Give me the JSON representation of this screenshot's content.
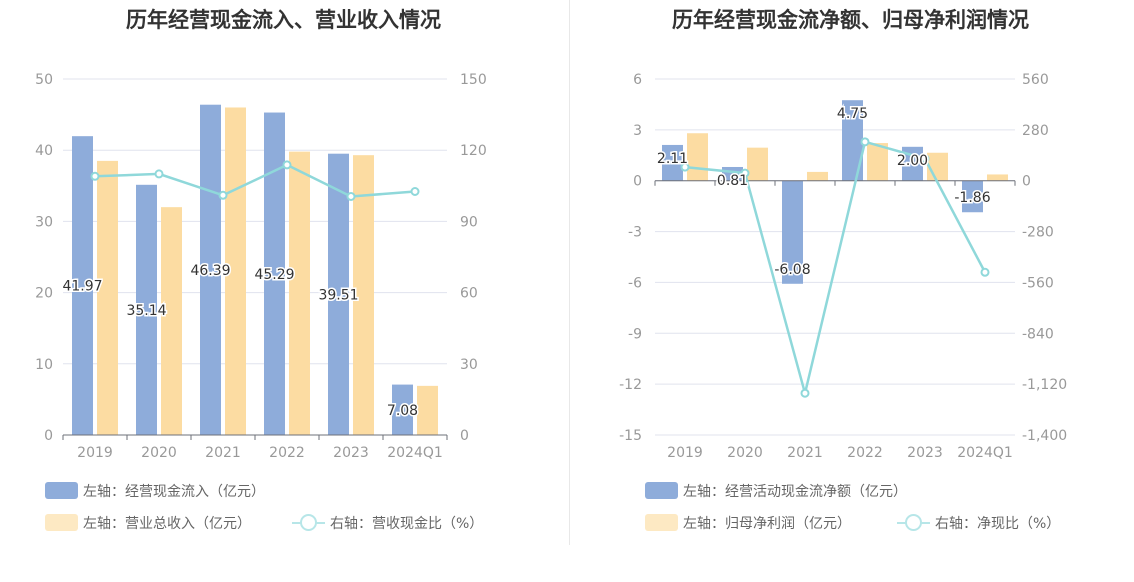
{
  "left": {
    "title": "历年经营现金流入、营业收入情况",
    "legend": {
      "bar1": "左轴：经营现金流入（亿元）",
      "bar2": "左轴：营业总收入（亿元）",
      "line": "右轴：营收现金比（%）"
    }
  },
  "right": {
    "title": "历年经营现金流净额、归母净利润情况",
    "legend": {
      "bar1": "左轴：经营活动现金流净额（亿元）",
      "bar2": "左轴：归母净利润（亿元）",
      "line": "右轴：净现比（%）"
    }
  },
  "colors": {
    "bar1": "#8eacda",
    "bar2": "#fcdca2",
    "line": "#8fd8da",
    "grid": "#e0e3ee",
    "axis": "#999999"
  },
  "chart_data": [
    {
      "type": "bar",
      "title": "历年经营现金流入、营业收入情况",
      "categories": [
        "2019",
        "2020",
        "2021",
        "2022",
        "2023",
        "2024Q1"
      ],
      "series": [
        {
          "name": "左轴：经营现金流入（亿元）",
          "axis": "left",
          "type": "bar",
          "values": [
            41.97,
            35.14,
            46.39,
            45.29,
            39.51,
            7.08
          ],
          "labels": [
            "41.97",
            "35.14",
            "46.39",
            "45.29",
            "39.51",
            "7.08"
          ]
        },
        {
          "name": "左轴：营业总收入（亿元）",
          "axis": "left",
          "type": "bar",
          "values": [
            38.5,
            32.0,
            46.0,
            39.8,
            39.3,
            6.9
          ]
        },
        {
          "name": "右轴：营收现金比（%）",
          "axis": "right",
          "type": "line",
          "values": [
            109,
            110,
            101,
            113.8,
            100.5,
            102.6
          ]
        }
      ],
      "y_left": {
        "min": 0,
        "max": 50,
        "ticks": [
          "0",
          "10",
          "20",
          "30",
          "40",
          "50"
        ]
      },
      "y_right": {
        "min": 0,
        "max": 150,
        "ticks": [
          "0",
          "30",
          "60",
          "90",
          "120",
          "150"
        ]
      },
      "grid": true,
      "legend_position": "bottom-left"
    },
    {
      "type": "bar",
      "title": "历年经营现金流净额、归母净利润情况",
      "categories": [
        "2019",
        "2020",
        "2021",
        "2022",
        "2023",
        "2024Q1"
      ],
      "series": [
        {
          "name": "左轴：经营活动现金流净额（亿元）",
          "axis": "left",
          "type": "bar",
          "values": [
            2.11,
            0.81,
            -6.08,
            4.75,
            2.0,
            -1.86
          ],
          "labels": [
            "2.11",
            "0.81",
            "-6.08",
            "4.75",
            "2.00",
            "-1.86"
          ]
        },
        {
          "name": "左轴：归母净利润（亿元）",
          "axis": "left",
          "type": "bar",
          "values": [
            2.8,
            1.95,
            0.52,
            2.22,
            1.65,
            0.37
          ]
        },
        {
          "name": "右轴：净现比（%）",
          "axis": "right",
          "type": "line",
          "values": [
            75,
            42,
            -1170,
            214,
            121,
            -504
          ]
        }
      ],
      "y_left": {
        "min": -15,
        "max": 6,
        "ticks": [
          "-15",
          "-12",
          "-9",
          "-6",
          "-3",
          "0",
          "3",
          "6"
        ]
      },
      "y_right": {
        "min": -1400,
        "max": 560,
        "ticks": [
          "-1,400",
          "-1,120",
          "-840",
          "-560",
          "-280",
          "0",
          "280",
          "560"
        ]
      },
      "grid": true,
      "legend_position": "bottom-left"
    }
  ]
}
